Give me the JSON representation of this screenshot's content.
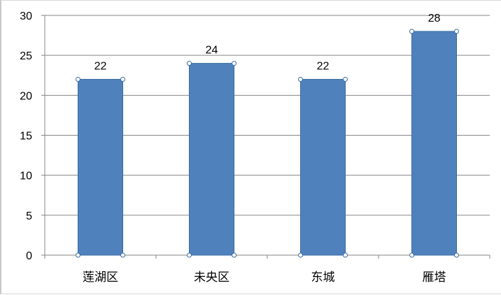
{
  "chart_data": {
    "type": "bar",
    "title": "",
    "xlabel": "",
    "ylabel": "",
    "categories": [
      "莲湖区",
      "未央区",
      "东城",
      "雁塔"
    ],
    "values": [
      22,
      24,
      22,
      28
    ],
    "value_labels": [
      "22",
      "24",
      "22",
      "28"
    ],
    "ylim": [
      0,
      30
    ],
    "yticks": [
      0,
      5,
      10,
      15,
      20,
      25,
      30
    ],
    "ytick_labels": [
      "0",
      "5",
      "10",
      "15",
      "20",
      "25",
      "30"
    ],
    "grid": "horizontal",
    "legend": "none",
    "bar_color": "#4f81bd",
    "bar_edge_color": "#3a6aa3",
    "gridline_color": "#868686"
  }
}
